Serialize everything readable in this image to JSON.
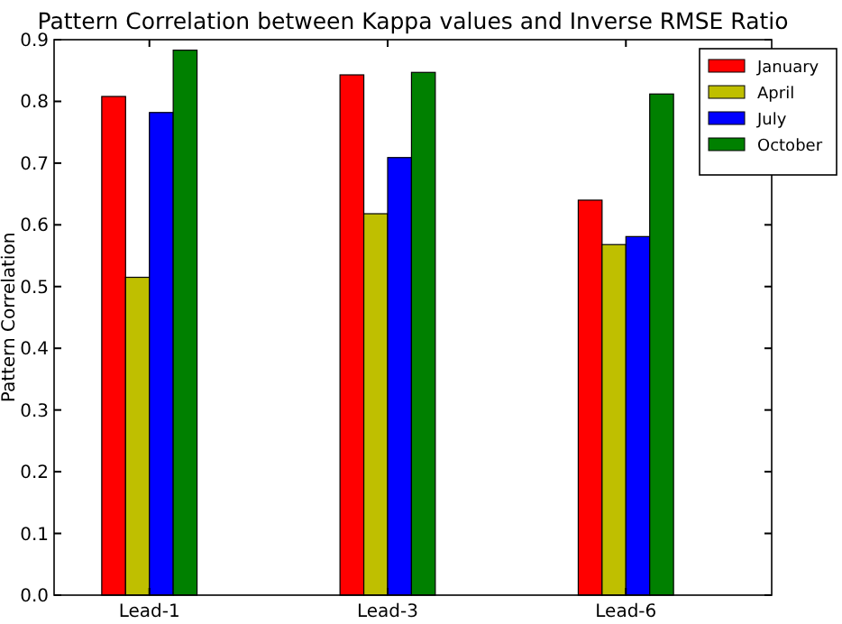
{
  "chart_data": {
    "type": "bar",
    "title": "Pattern Correlation between Kappa values and Inverse RMSE Ratio",
    "ylabel": "Pattern Correlation",
    "categories": [
      "Lead-1",
      "Lead-3",
      "Lead-6"
    ],
    "series": [
      {
        "name": "January",
        "color": "#ff0000",
        "values": [
          0.808,
          0.843,
          0.64
        ]
      },
      {
        "name": "April",
        "color": "#bfbf00",
        "values": [
          0.515,
          0.618,
          0.568
        ]
      },
      {
        "name": "July",
        "color": "#0000ff",
        "values": [
          0.782,
          0.709,
          0.581
        ]
      },
      {
        "name": "October",
        "color": "#008000",
        "values": [
          0.883,
          0.847,
          0.812
        ]
      }
    ],
    "ylim": [
      0,
      0.9
    ],
    "yticks": [
      {
        "value": 0,
        "label": "0.0"
      },
      0.1,
      0.2,
      0.3,
      0.4,
      0.5,
      0.6,
      0.7,
      0.8,
      0.9
    ],
    "grid": false,
    "legend": "top right"
  }
}
